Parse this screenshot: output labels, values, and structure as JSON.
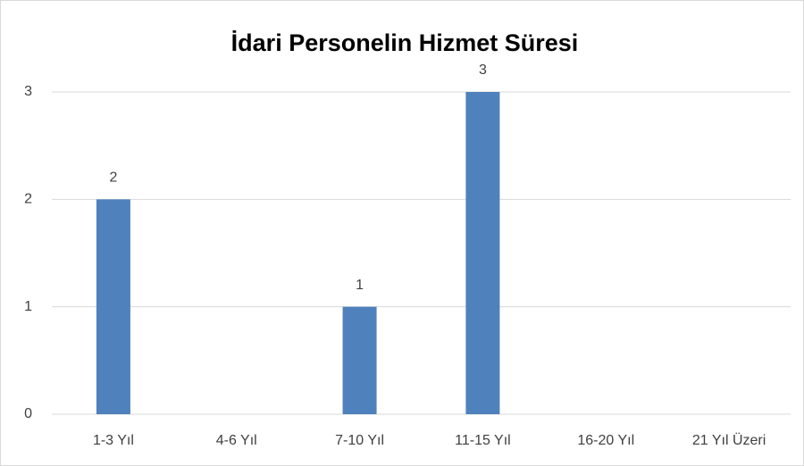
{
  "chart_data": {
    "type": "bar",
    "title": "İdari Personelin Hizmet Süresi",
    "categories": [
      "1-3 Yıl",
      "4-6 Yıl",
      "7-10 Yıl",
      "11-15 Yıl",
      "16-20 Yıl",
      "21 Yıl Üzeri"
    ],
    "values": [
      2,
      null,
      1,
      3,
      null,
      null
    ],
    "color": "#4f81bd",
    "ylim": [
      0,
      3
    ],
    "yticks": [
      0,
      1,
      2,
      3
    ],
    "grid": true
  }
}
